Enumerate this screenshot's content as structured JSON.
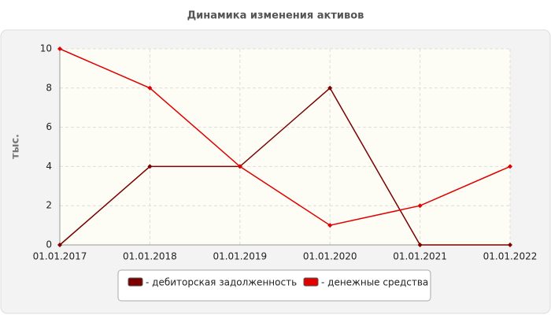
{
  "chart_data": {
    "type": "line",
    "title": "Динамика изменения активов",
    "y_label": "тыс.",
    "categories": [
      "01.01.2017",
      "01.01.2018",
      "01.01.2019",
      "01.01.2020",
      "01.01.2021",
      "01.01.2022"
    ],
    "series": [
      {
        "name": "- дебиторская задолженность",
        "color": "#7a0000",
        "values": [
          0,
          4,
          4,
          8,
          0,
          0
        ]
      },
      {
        "name": "- денежные средства",
        "color": "#e00000",
        "values": [
          10,
          8,
          4,
          1,
          2,
          4
        ]
      }
    ],
    "ylim": [
      0,
      10
    ],
    "yticks": [
      0,
      2,
      4,
      6,
      8,
      10
    ],
    "grid": true
  }
}
